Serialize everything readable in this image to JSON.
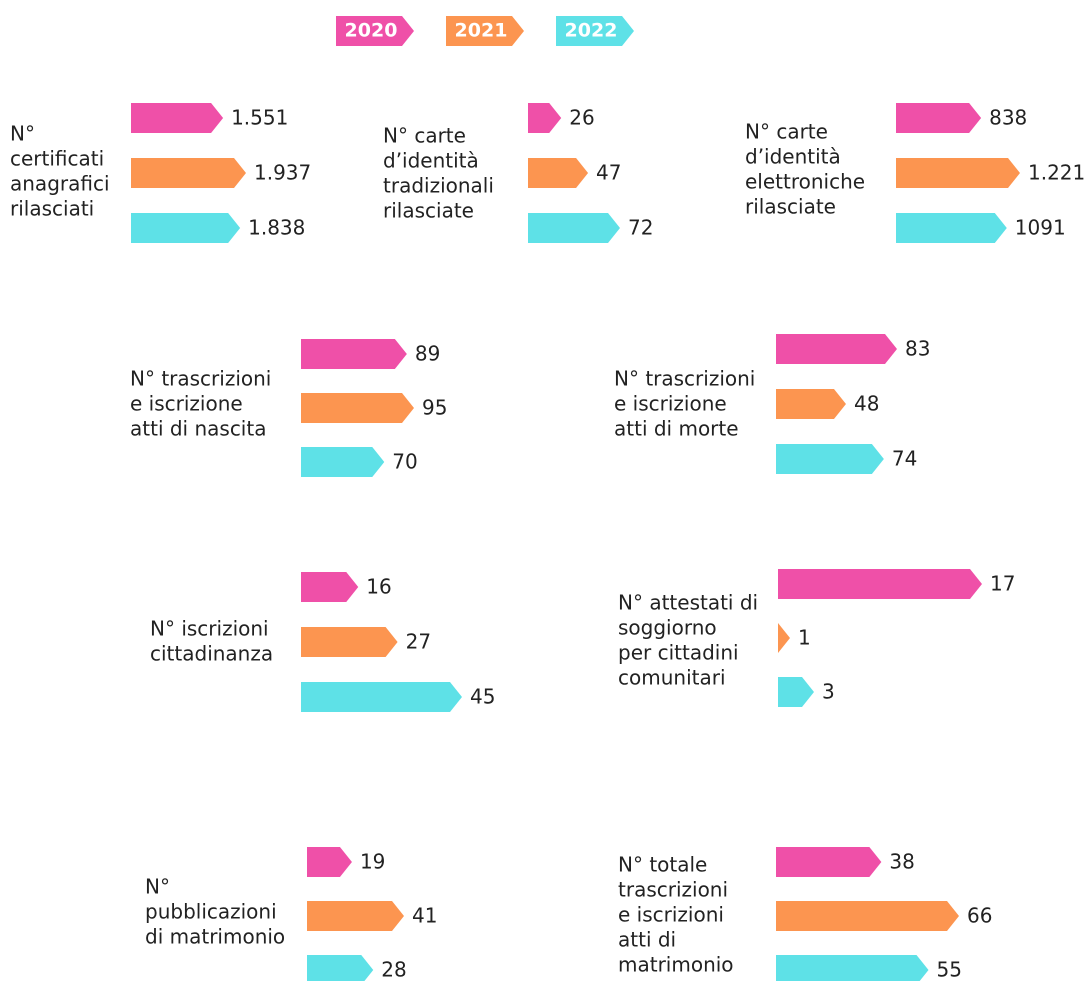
{
  "legend": [
    {
      "name": "2020",
      "color": "#ef50a8"
    },
    {
      "name": "2021",
      "color": "#fc9550"
    },
    {
      "name": "2022",
      "color": "#5ee1e7"
    }
  ],
  "chart_data": [
    {
      "type": "bar",
      "title": [
        "N°",
        "certificati",
        "anagrafici",
        "rilasciati"
      ],
      "values": [
        1551,
        1937,
        1838
      ],
      "value_labels": [
        "1.551",
        "1.937",
        "1.838"
      ]
    },
    {
      "type": "bar",
      "title": [
        "N° carte",
        "d’identità",
        "tradizionali",
        "rilasciate"
      ],
      "values": [
        26,
        47,
        72
      ]
    },
    {
      "type": "bar",
      "title": [
        "N° carte",
        "d’identità",
        "elettroniche",
        "rilasciate"
      ],
      "values": [
        838,
        1221,
        1091
      ],
      "value_labels": [
        "838",
        "1.221",
        "1091"
      ]
    },
    {
      "type": "bar",
      "title": [
        "N° trascrizioni",
        "e iscrizione",
        "atti di nascita"
      ],
      "values": [
        89,
        95,
        70
      ]
    },
    {
      "type": "bar",
      "title": [
        "N° trascrizioni",
        "e iscrizione",
        "atti di morte"
      ],
      "values": [
        83,
        48,
        74
      ]
    },
    {
      "type": "bar",
      "title": [
        "N° iscrizioni",
        "cittadinanza"
      ],
      "values": [
        16,
        27,
        45
      ]
    },
    {
      "type": "bar",
      "title": [
        "N° attestati di",
        "soggiorno",
        "per cittadini",
        "comunitari"
      ],
      "values": [
        17,
        1,
        3
      ]
    },
    {
      "type": "bar",
      "title": [
        "N°",
        "pubblicazioni",
        "di matrimonio"
      ],
      "values": [
        19,
        41,
        28
      ]
    },
    {
      "type": "bar",
      "title": [
        "N° totale",
        "trascrizioni",
        "e iscrizioni",
        "atti di",
        "matrimonio"
      ],
      "values": [
        38,
        66,
        55
      ]
    }
  ]
}
